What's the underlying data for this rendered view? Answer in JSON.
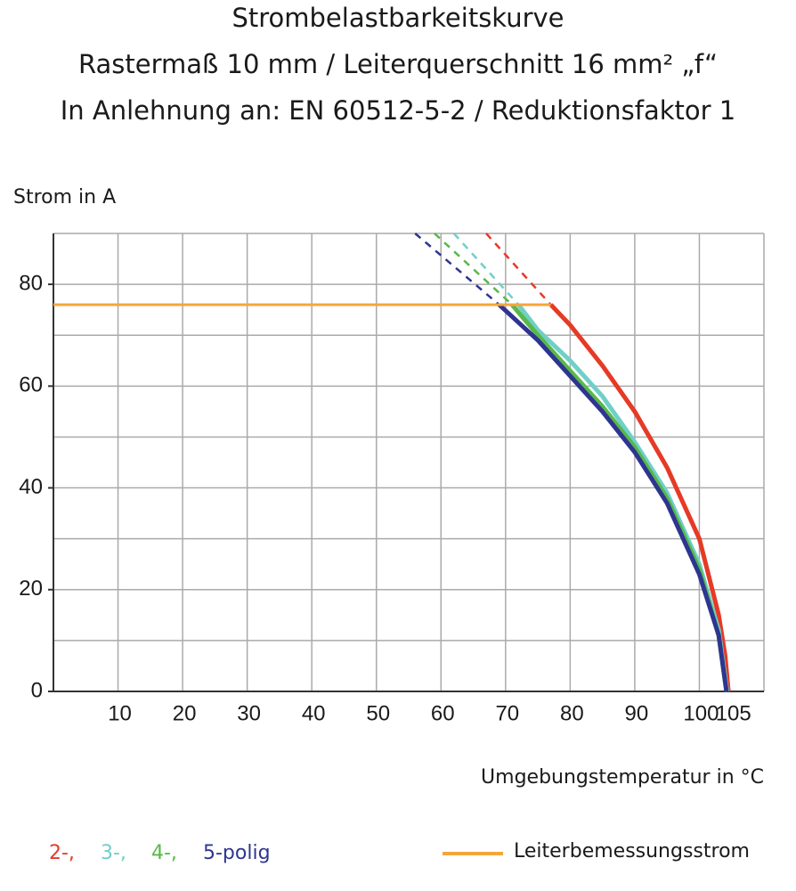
{
  "chart_data": {
    "type": "line",
    "title": [
      "Strombelastbarkeitskurve",
      "Rastermaß 10 mm / Leiterquerschnitt 16 mm² „f“",
      "In Anlehnung an: EN 60512-5-2 / Reduktionsfaktor 1"
    ],
    "y_label": "Strom in A",
    "x_label": "Umgebungstemperatur in °C",
    "xlim": [
      0,
      110
    ],
    "ylim": [
      0,
      90
    ],
    "xticks": [
      10,
      20,
      30,
      40,
      50,
      60,
      70,
      80,
      90,
      100,
      105
    ],
    "yticks": [
      0,
      20,
      40,
      60,
      80
    ],
    "xgrid": [
      10,
      20,
      30,
      40,
      50,
      60,
      70,
      80,
      90,
      100,
      110
    ],
    "ygrid": [
      10,
      20,
      30,
      40,
      50,
      60,
      70,
      80,
      90
    ],
    "series": [
      {
        "name": "2-,",
        "color": "#e63a26",
        "x": [
          77,
          80,
          85,
          90,
          95,
          100,
          103,
          104,
          104.5
        ],
        "values": [
          76,
          72,
          64,
          55,
          44,
          30,
          15,
          7,
          0
        ],
        "dashed": {
          "x": [
            67,
            77
          ],
          "values": [
            90,
            76
          ]
        }
      },
      {
        "name": "3-,",
        "color": "#6fd0c8",
        "x": [
          72,
          75,
          80,
          85,
          90,
          95,
          100,
          103,
          104.3
        ],
        "values": [
          76,
          71,
          65,
          58,
          49,
          39,
          25,
          12,
          0
        ],
        "dashed": {
          "x": [
            62,
            72
          ],
          "values": [
            90,
            76
          ]
        }
      },
      {
        "name": "4-,",
        "color": "#58b848",
        "x": [
          71,
          75,
          80,
          85,
          90,
          95,
          100,
          103,
          104.2
        ],
        "values": [
          76,
          70,
          63,
          56,
          48,
          38,
          24,
          11,
          0
        ],
        "dashed": {
          "x": [
            59,
            71
          ],
          "values": [
            90,
            76
          ]
        }
      },
      {
        "name": "5-polig",
        "color": "#2e3590",
        "x": [
          69,
          75,
          80,
          85,
          90,
          95,
          100,
          103,
          104.2
        ],
        "values": [
          76,
          69,
          62,
          55,
          47,
          37,
          23,
          11,
          0
        ],
        "dashed": {
          "x": [
            56,
            69
          ],
          "values": [
            90,
            76
          ]
        }
      },
      {
        "name": "Leiterbemessungsstrom",
        "color": "#f4a63a",
        "x": [
          0,
          77
        ],
        "values": [
          76,
          76
        ]
      }
    ]
  }
}
